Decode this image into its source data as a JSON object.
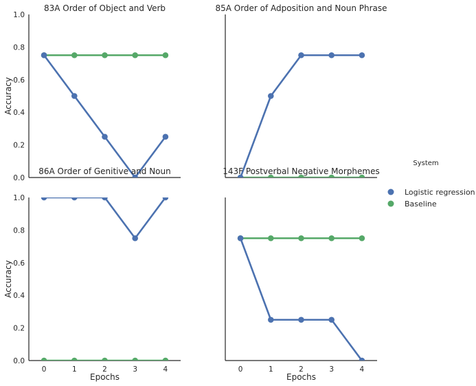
{
  "chart_data": {
    "type": "line",
    "legend": {
      "title": "System",
      "placement": "right",
      "entries": [
        {
          "name": "Logistic regression",
          "color": "#4c72b0"
        },
        {
          "name": "Baseline",
          "color": "#55a868"
        }
      ]
    },
    "ylabel": "Accuracy",
    "xlabel": "Epochs",
    "x": [
      0,
      1,
      2,
      3,
      4
    ],
    "xlim": [
      -0.5,
      4.5
    ],
    "ylim": [
      0,
      1
    ],
    "yticks": [
      "0.0",
      "0.2",
      "0.4",
      "0.6",
      "0.8",
      "1.0"
    ],
    "grid": false,
    "panels": [
      {
        "title": "83A Order of Object and Verb",
        "series": [
          {
            "name": "Logistic regression",
            "values": [
              0.75,
              0.5,
              0.25,
              0.0,
              0.25
            ]
          },
          {
            "name": "Baseline",
            "values": [
              0.75,
              0.75,
              0.75,
              0.75,
              0.75
            ]
          }
        ]
      },
      {
        "title": "85A Order of Adposition and Noun Phrase",
        "series": [
          {
            "name": "Logistic regression",
            "values": [
              0.0,
              0.5,
              0.75,
              0.75,
              0.75
            ]
          },
          {
            "name": "Baseline",
            "values": [
              0.0,
              0.0,
              0.0,
              0.0,
              0.0
            ]
          }
        ]
      },
      {
        "title": "86A Order of Genitive and Noun",
        "series": [
          {
            "name": "Logistic regression",
            "values": [
              1.0,
              1.0,
              1.0,
              0.75,
              1.0
            ]
          },
          {
            "name": "Baseline",
            "values": [
              0.0,
              0.0,
              0.0,
              0.0,
              0.0
            ]
          }
        ]
      },
      {
        "title": "143F Postverbal Negative Morphemes",
        "series": [
          {
            "name": "Logistic regression",
            "values": [
              0.75,
              0.25,
              0.25,
              0.25,
              0.0
            ]
          },
          {
            "name": "Baseline",
            "values": [
              0.75,
              0.75,
              0.75,
              0.75,
              0.75
            ]
          }
        ]
      }
    ]
  }
}
